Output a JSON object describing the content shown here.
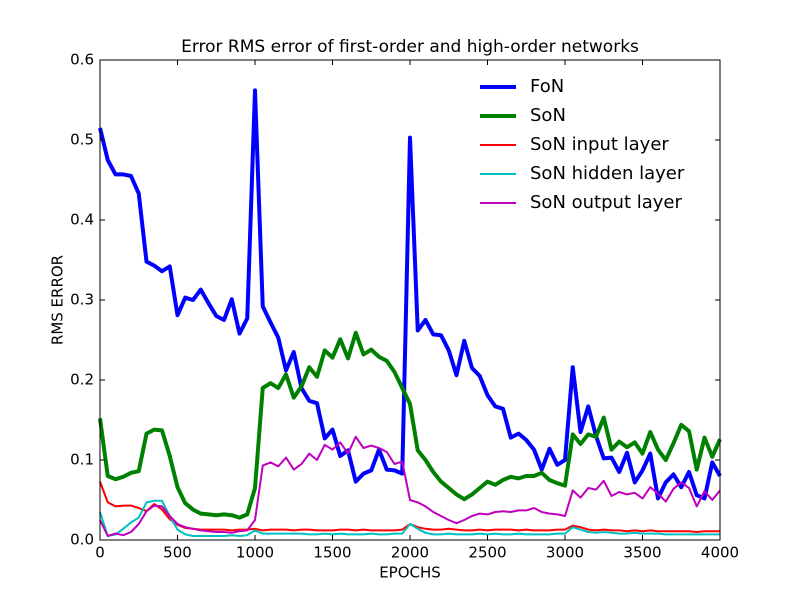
{
  "chart_data": {
    "type": "line",
    "title": "Error RMS error of first-order and high-order networks",
    "x_label": "EPOCHS",
    "y_label": "RMS ERROR",
    "x": [
      0,
      50,
      100,
      150,
      200,
      250,
      300,
      350,
      400,
      450,
      500,
      550,
      600,
      650,
      700,
      750,
      800,
      850,
      900,
      950,
      1000,
      1050,
      1100,
      1150,
      1200,
      1250,
      1300,
      1350,
      1400,
      1450,
      1500,
      1550,
      1600,
      1650,
      1700,
      1750,
      1800,
      1850,
      1900,
      1950,
      2000,
      2050,
      2100,
      2150,
      2200,
      2250,
      2300,
      2350,
      2400,
      2450,
      2500,
      2550,
      2600,
      2650,
      2700,
      2750,
      2800,
      2850,
      2900,
      2950,
      3000,
      3050,
      3100,
      3150,
      3200,
      3250,
      3300,
      3350,
      3400,
      3450,
      3500,
      3550,
      3600,
      3650,
      3700,
      3750,
      3800,
      3850,
      3900,
      3950,
      4000
    ],
    "series": [
      {
        "name": "FoN",
        "color": "#0000ff",
        "width": 4,
        "values": [
          0.515,
          0.475,
          0.457,
          0.457,
          0.455,
          0.433,
          0.348,
          0.343,
          0.336,
          0.342,
          0.281,
          0.303,
          0.3,
          0.313,
          0.296,
          0.28,
          0.275,
          0.301,
          0.258,
          0.277,
          0.562,
          0.292,
          0.272,
          0.253,
          0.212,
          0.235,
          0.19,
          0.174,
          0.171,
          0.127,
          0.138,
          0.105,
          0.112,
          0.073,
          0.083,
          0.087,
          0.113,
          0.088,
          0.087,
          0.083,
          0.503,
          0.262,
          0.275,
          0.257,
          0.256,
          0.237,
          0.206,
          0.249,
          0.215,
          0.205,
          0.181,
          0.167,
          0.164,
          0.128,
          0.133,
          0.125,
          0.113,
          0.088,
          0.114,
          0.094,
          0.1,
          0.216,
          0.135,
          0.167,
          0.13,
          0.102,
          0.103,
          0.085,
          0.109,
          0.072,
          0.087,
          0.108,
          0.052,
          0.072,
          0.082,
          0.066,
          0.085,
          0.056,
          0.052,
          0.097,
          0.08
        ]
      },
      {
        "name": "SoN",
        "color": "#008000",
        "width": 4,
        "values": [
          0.152,
          0.08,
          0.076,
          0.079,
          0.084,
          0.086,
          0.133,
          0.138,
          0.137,
          0.105,
          0.066,
          0.046,
          0.038,
          0.033,
          0.032,
          0.031,
          0.032,
          0.031,
          0.028,
          0.032,
          0.065,
          0.19,
          0.196,
          0.19,
          0.207,
          0.178,
          0.192,
          0.216,
          0.204,
          0.237,
          0.228,
          0.251,
          0.227,
          0.259,
          0.232,
          0.238,
          0.229,
          0.224,
          0.21,
          0.19,
          0.17,
          0.112,
          0.1,
          0.085,
          0.073,
          0.065,
          0.057,
          0.051,
          0.057,
          0.065,
          0.073,
          0.069,
          0.075,
          0.079,
          0.077,
          0.08,
          0.08,
          0.084,
          0.075,
          0.071,
          0.068,
          0.132,
          0.12,
          0.132,
          0.129,
          0.153,
          0.113,
          0.123,
          0.116,
          0.122,
          0.108,
          0.135,
          0.113,
          0.1,
          0.121,
          0.144,
          0.136,
          0.088,
          0.128,
          0.104,
          0.126
        ]
      },
      {
        "name": "SoN input layer",
        "color": "#ff0000",
        "width": 2,
        "values": [
          0.073,
          0.047,
          0.042,
          0.043,
          0.043,
          0.04,
          0.036,
          0.045,
          0.038,
          0.026,
          0.019,
          0.015,
          0.014,
          0.013,
          0.013,
          0.013,
          0.013,
          0.012,
          0.013,
          0.013,
          0.014,
          0.012,
          0.013,
          0.013,
          0.013,
          0.012,
          0.013,
          0.013,
          0.012,
          0.012,
          0.012,
          0.013,
          0.013,
          0.012,
          0.013,
          0.012,
          0.012,
          0.012,
          0.012,
          0.013,
          0.02,
          0.016,
          0.014,
          0.013,
          0.013,
          0.014,
          0.013,
          0.012,
          0.012,
          0.013,
          0.012,
          0.013,
          0.013,
          0.013,
          0.012,
          0.013,
          0.012,
          0.012,
          0.012,
          0.013,
          0.013,
          0.018,
          0.016,
          0.013,
          0.012,
          0.013,
          0.012,
          0.012,
          0.011,
          0.012,
          0.011,
          0.012,
          0.011,
          0.011,
          0.011,
          0.011,
          0.011,
          0.01,
          0.011,
          0.011,
          0.011
        ]
      },
      {
        "name": "SoN hidden layer",
        "color": "#00bfbf",
        "width": 2,
        "values": [
          0.035,
          0.005,
          0.007,
          0.014,
          0.022,
          0.028,
          0.047,
          0.049,
          0.049,
          0.03,
          0.013,
          0.007,
          0.005,
          0.005,
          0.005,
          0.005,
          0.005,
          0.006,
          0.005,
          0.006,
          0.012,
          0.008,
          0.008,
          0.008,
          0.008,
          0.008,
          0.008,
          0.007,
          0.007,
          0.008,
          0.007,
          0.008,
          0.007,
          0.007,
          0.007,
          0.008,
          0.007,
          0.007,
          0.008,
          0.008,
          0.02,
          0.014,
          0.009,
          0.007,
          0.007,
          0.008,
          0.007,
          0.007,
          0.007,
          0.008,
          0.007,
          0.008,
          0.007,
          0.007,
          0.008,
          0.007,
          0.007,
          0.007,
          0.007,
          0.008,
          0.008,
          0.016,
          0.013,
          0.01,
          0.009,
          0.01,
          0.009,
          0.008,
          0.008,
          0.009,
          0.008,
          0.008,
          0.008,
          0.007,
          0.007,
          0.007,
          0.007,
          0.007,
          0.007,
          0.007,
          0.007
        ]
      },
      {
        "name": "SoN output layer",
        "color": "#bf00bf",
        "width": 2,
        "values": [
          0.025,
          0.005,
          0.008,
          0.006,
          0.01,
          0.02,
          0.036,
          0.043,
          0.042,
          0.03,
          0.02,
          0.016,
          0.014,
          0.012,
          0.011,
          0.01,
          0.01,
          0.009,
          0.011,
          0.012,
          0.025,
          0.093,
          0.097,
          0.092,
          0.103,
          0.088,
          0.095,
          0.108,
          0.1,
          0.119,
          0.113,
          0.122,
          0.108,
          0.129,
          0.115,
          0.118,
          0.115,
          0.11,
          0.095,
          0.098,
          0.05,
          0.047,
          0.042,
          0.035,
          0.03,
          0.025,
          0.021,
          0.025,
          0.03,
          0.033,
          0.032,
          0.035,
          0.036,
          0.035,
          0.037,
          0.037,
          0.04,
          0.035,
          0.033,
          0.032,
          0.03,
          0.062,
          0.053,
          0.065,
          0.063,
          0.074,
          0.055,
          0.06,
          0.057,
          0.059,
          0.052,
          0.066,
          0.058,
          0.048,
          0.064,
          0.072,
          0.065,
          0.042,
          0.061,
          0.05,
          0.062
        ]
      }
    ],
    "xlim": [
      0,
      4000
    ],
    "xticks": [
      0,
      500,
      1000,
      1500,
      2000,
      2500,
      3000,
      3500,
      4000
    ],
    "ylim": [
      0,
      0.6
    ],
    "yticks": [
      {
        "value": 0,
        "label": "0.0"
      },
      0.1,
      0.2,
      0.3,
      0.4,
      0.5,
      0.6
    ],
    "legend": "upper right",
    "grid": false
  }
}
